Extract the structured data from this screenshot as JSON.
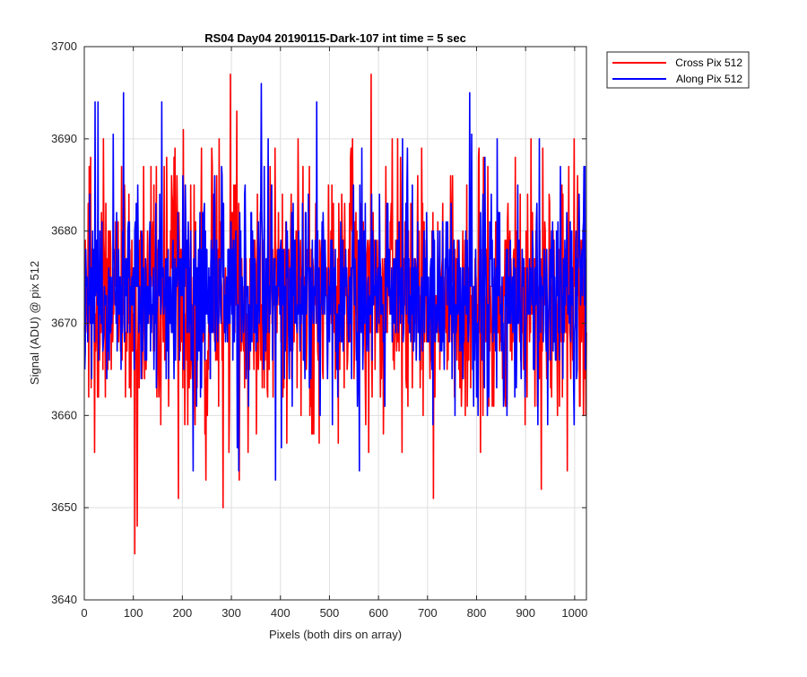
{
  "chart_data": {
    "type": "line",
    "title": "RS04 Day04 20190115-Dark-107 int time = 5 sec",
    "xlabel": "Pixels (both dirs on array)",
    "ylabel": "Signal (ADU) @ pix 512",
    "xlim": [
      0,
      1024
    ],
    "ylim": [
      3640,
      3700
    ],
    "xticks": [
      0,
      100,
      200,
      300,
      400,
      500,
      600,
      700,
      800,
      900,
      1000
    ],
    "yticks": [
      3640,
      3650,
      3660,
      3670,
      3680,
      3690,
      3700
    ],
    "grid": true,
    "legend_position": "outside-top-right",
    "series": [
      {
        "name": "Cross Pix 512",
        "color": "#ff0000",
        "x_range": [
          1,
          1024
        ],
        "mean": 3673,
        "std": 6.8,
        "noise": true,
        "notable_points": [
          [
            13,
            3688
          ],
          [
            103,
            3645
          ],
          [
            108,
            3648
          ],
          [
            192,
            3651
          ],
          [
            202,
            3691
          ],
          [
            248,
            3653
          ],
          [
            283,
            3650
          ],
          [
            298,
            3697
          ],
          [
            311,
            3693
          ],
          [
            316,
            3653
          ],
          [
            585,
            3697
          ],
          [
            645,
            3688
          ],
          [
            648,
            3656
          ],
          [
            712,
            3651
          ],
          [
            932,
            3652
          ],
          [
            985,
            3654
          ]
        ]
      },
      {
        "name": "Along Pix 512",
        "color": "#0000ff",
        "x_range": [
          1,
          1024
        ],
        "mean": 3673.5,
        "std": 5.4,
        "noise": true,
        "notable_points": [
          [
            22,
            3694
          ],
          [
            28,
            3694
          ],
          [
            80,
            3695
          ],
          [
            158,
            3694
          ],
          [
            222,
            3654
          ],
          [
            315,
            3654
          ],
          [
            361,
            3696
          ],
          [
            390,
            3653
          ],
          [
            474,
            3694
          ],
          [
            561,
            3654
          ],
          [
            566,
            3689
          ],
          [
            786,
            3695
          ],
          [
            842,
            3690
          ]
        ]
      }
    ]
  }
}
